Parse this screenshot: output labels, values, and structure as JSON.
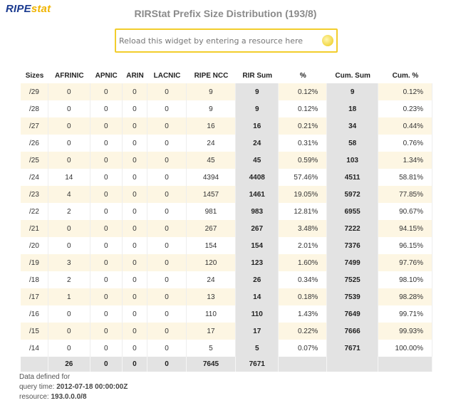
{
  "logo": {
    "part1": "RIPE",
    "part2": "stat"
  },
  "title": "RIRStat Prefix Size Distribution (193/8)",
  "reload": {
    "placeholder": "Reload this widget by entering a resource here"
  },
  "table": {
    "headers": [
      "Sizes",
      "AFRINIC",
      "APNIC",
      "ARIN",
      "LACNIC",
      "RIPE NCC",
      "RIR Sum",
      "%",
      "Cum. Sum",
      "Cum. %"
    ],
    "rows": [
      [
        "/29",
        "0",
        "0",
        "0",
        "0",
        "9",
        "9",
        "0.12%",
        "9",
        "0.12%"
      ],
      [
        "/28",
        "0",
        "0",
        "0",
        "0",
        "9",
        "9",
        "0.12%",
        "18",
        "0.23%"
      ],
      [
        "/27",
        "0",
        "0",
        "0",
        "0",
        "16",
        "16",
        "0.21%",
        "34",
        "0.44%"
      ],
      [
        "/26",
        "0",
        "0",
        "0",
        "0",
        "24",
        "24",
        "0.31%",
        "58",
        "0.76%"
      ],
      [
        "/25",
        "0",
        "0",
        "0",
        "0",
        "45",
        "45",
        "0.59%",
        "103",
        "1.34%"
      ],
      [
        "/24",
        "14",
        "0",
        "0",
        "0",
        "4394",
        "4408",
        "57.46%",
        "4511",
        "58.81%"
      ],
      [
        "/23",
        "4",
        "0",
        "0",
        "0",
        "1457",
        "1461",
        "19.05%",
        "5972",
        "77.85%"
      ],
      [
        "/22",
        "2",
        "0",
        "0",
        "0",
        "981",
        "983",
        "12.81%",
        "6955",
        "90.67%"
      ],
      [
        "/21",
        "0",
        "0",
        "0",
        "0",
        "267",
        "267",
        "3.48%",
        "7222",
        "94.15%"
      ],
      [
        "/20",
        "0",
        "0",
        "0",
        "0",
        "154",
        "154",
        "2.01%",
        "7376",
        "96.15%"
      ],
      [
        "/19",
        "3",
        "0",
        "0",
        "0",
        "120",
        "123",
        "1.60%",
        "7499",
        "97.76%"
      ],
      [
        "/18",
        "2",
        "0",
        "0",
        "0",
        "24",
        "26",
        "0.34%",
        "7525",
        "98.10%"
      ],
      [
        "/17",
        "1",
        "0",
        "0",
        "0",
        "13",
        "14",
        "0.18%",
        "7539",
        "98.28%"
      ],
      [
        "/16",
        "0",
        "0",
        "0",
        "0",
        "110",
        "110",
        "1.43%",
        "7649",
        "99.71%"
      ],
      [
        "/15",
        "0",
        "0",
        "0",
        "0",
        "17",
        "17",
        "0.22%",
        "7666",
        "99.93%"
      ],
      [
        "/14",
        "0",
        "0",
        "0",
        "0",
        "5",
        "5",
        "0.07%",
        "7671",
        "100.00%"
      ]
    ],
    "totals": [
      "",
      "26",
      "0",
      "0",
      "0",
      "7645",
      "7671",
      "",
      "",
      ""
    ]
  },
  "footer": {
    "line1": "Data defined for",
    "query_label": "query time: ",
    "query_value": "2012-07-18 00:00:00Z",
    "resource_label": "resource: ",
    "resource_value": "193.0.0.0/8"
  }
}
